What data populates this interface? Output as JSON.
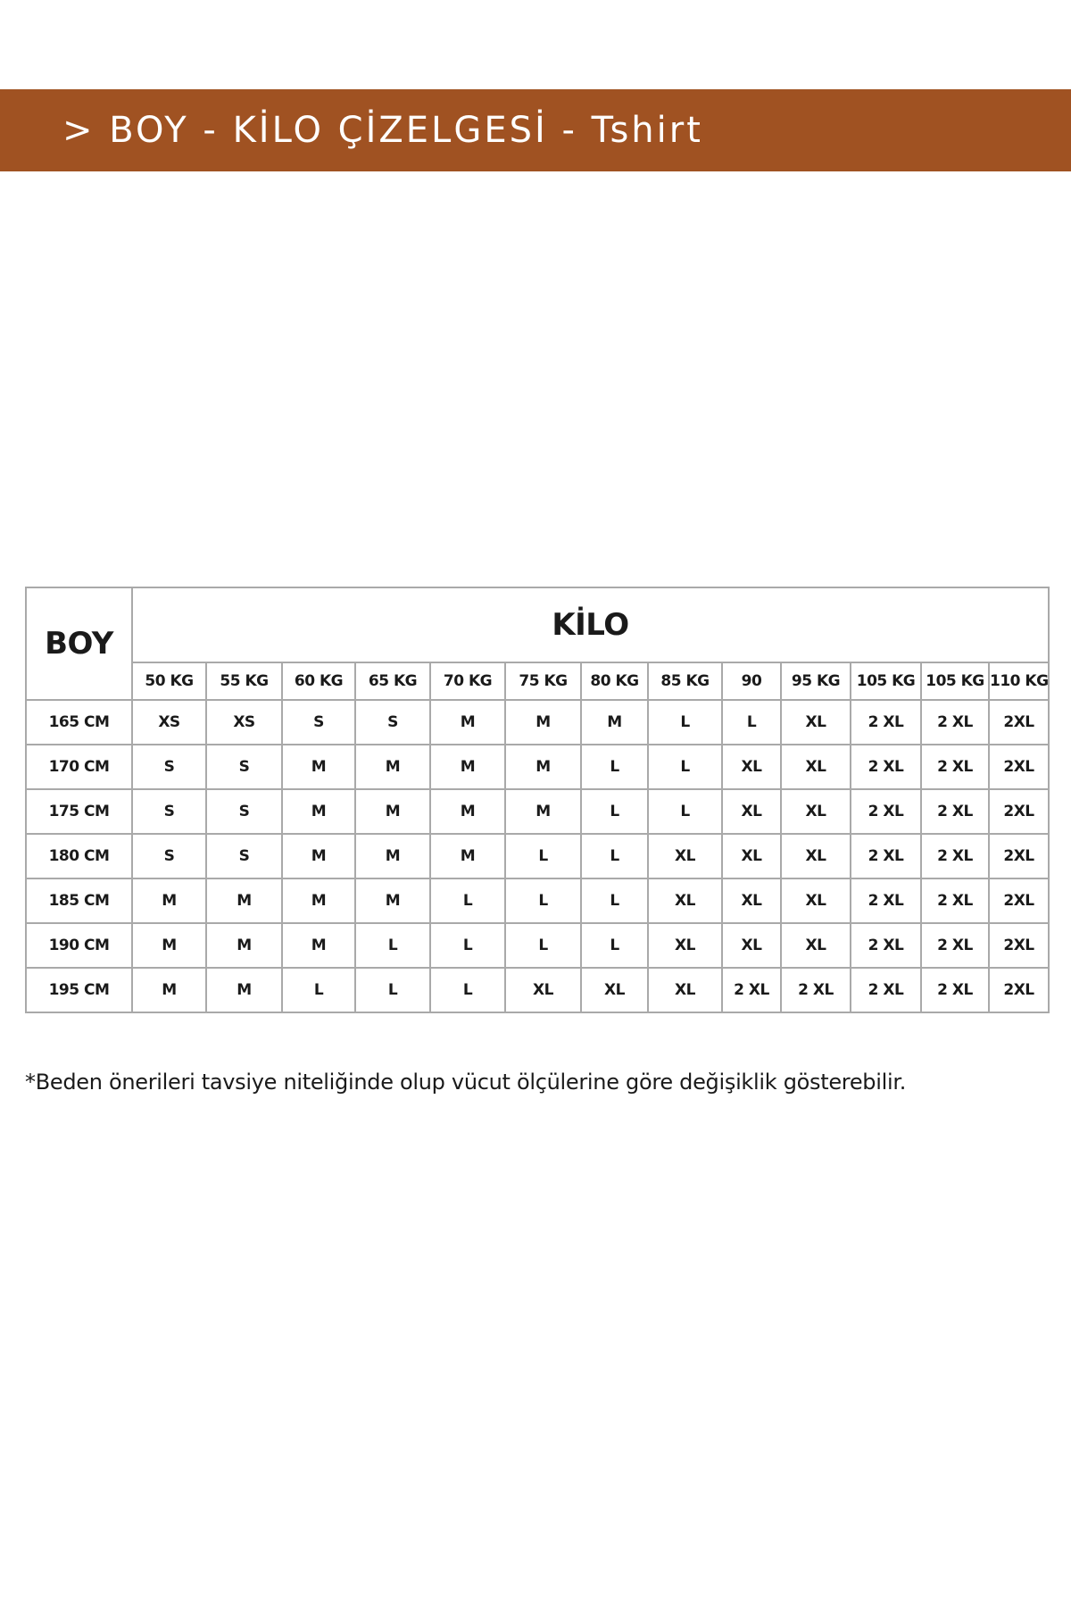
{
  "header": {
    "title": "> BOY - KİLO ÇİZELGESİ - Tshirt"
  },
  "table": {
    "boy_header": "BOY",
    "kilo_header": "KİLO",
    "weights": [
      "50 KG",
      "55 KG",
      "60 KG",
      "65 KG",
      "70 KG",
      "75 KG",
      "80 KG",
      "85 KG",
      "90",
      "95 KG",
      "105 KG",
      "105 KG",
      "110 KG"
    ],
    "rows": [
      [
        "165 CM",
        "XS",
        "XS",
        "S",
        "S",
        "M",
        "M",
        "M",
        "L",
        "L",
        "XL",
        "2 XL",
        "2 XL",
        "2XL"
      ],
      [
        "170 CM",
        "S",
        "S",
        "M",
        "M",
        "M",
        "M",
        "L",
        "L",
        "XL",
        "XL",
        "2 XL",
        "2 XL",
        "2XL"
      ],
      [
        "175 CM",
        "S",
        "S",
        "M",
        "M",
        "M",
        "M",
        "L",
        "L",
        "XL",
        "XL",
        "2 XL",
        "2 XL",
        "2XL"
      ],
      [
        "180 CM",
        "S",
        "S",
        "M",
        "M",
        "M",
        "L",
        "L",
        "XL",
        "XL",
        "XL",
        "2 XL",
        "2 XL",
        "2XL"
      ],
      [
        "185 CM",
        "M",
        "M",
        "M",
        "M",
        "L",
        "L",
        "L",
        "XL",
        "XL",
        "XL",
        "2 XL",
        "2 XL",
        "2XL"
      ],
      [
        "190 CM",
        "M",
        "M",
        "M",
        "L",
        "L",
        "L",
        "L",
        "XL",
        "XL",
        "XL",
        "2 XL",
        "2 XL",
        "2XL"
      ],
      [
        "195 CM",
        "M",
        "M",
        "L",
        "L",
        "L",
        "XL",
        "XL",
        "XL",
        "2 XL",
        "2 XL",
        "2 XL",
        "2 XL",
        "2XL"
      ]
    ]
  },
  "footnote": "*Beden önerileri tavsiye niteliğinde olup vücut ölçülerine göre değişiklik gösterebilir."
}
